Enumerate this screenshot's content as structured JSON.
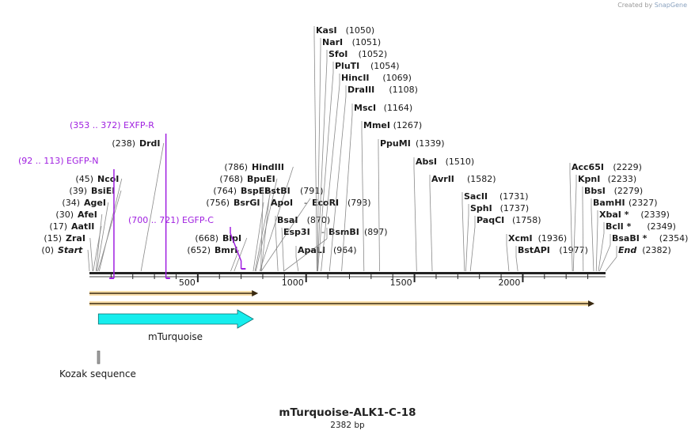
{
  "credit": {
    "prefix": "Created by",
    "brand": "SnapGene"
  },
  "map": {
    "title": "mTurquoise-ALK1-C-18",
    "length_label": "2382 bp",
    "length": 2382,
    "ticks": [
      "500",
      "1000",
      "1500",
      "2000"
    ],
    "sites": [
      {
        "name": "Start",
        "pos": "(0)",
        "bp": 0,
        "side": "left",
        "italic": true
      },
      {
        "name": "ZraI",
        "pos": "(15)",
        "bp": 15,
        "side": "left"
      },
      {
        "name": "AatII",
        "pos": "(17)",
        "bp": 17,
        "side": "left"
      },
      {
        "name": "AfeI",
        "pos": "(30)",
        "bp": 30,
        "side": "left"
      },
      {
        "name": "AgeI",
        "pos": "(34)",
        "bp": 34,
        "side": "left"
      },
      {
        "name": "BsiEI",
        "pos": "(39)",
        "bp": 39,
        "side": "left"
      },
      {
        "name": "NcoI",
        "pos": "(45)",
        "bp": 45,
        "side": "left"
      },
      {
        "name": "DrdI",
        "pos": "(238)",
        "bp": 238,
        "side": "left"
      },
      {
        "name": "BmrI",
        "pos": "(652)",
        "bp": 652,
        "side": "left"
      },
      {
        "name": "BlpI",
        "pos": "(668)",
        "bp": 668,
        "side": "left"
      },
      {
        "name": "BsrGI",
        "pos": "(756)",
        "bp": 756,
        "side": "left"
      },
      {
        "name": "BspEI",
        "pos": "(764)",
        "bp": 764,
        "side": "left"
      },
      {
        "name": "BpuEI",
        "pos": "(768)",
        "bp": 768,
        "side": "left"
      },
      {
        "name": "HindIII",
        "pos": "(786)",
        "bp": 786,
        "side": "left"
      },
      {
        "name": "BstBI",
        "pos": "(791)",
        "bp": 791,
        "side": "right"
      },
      {
        "name": "ApoI",
        "pos": "",
        "bp": 793,
        "side": "plain"
      },
      {
        "name": "EcoRI",
        "pos": "(793)",
        "bp": 793,
        "side": "right"
      },
      {
        "name": "BsaI",
        "pos": "(870)",
        "bp": 870,
        "side": "right"
      },
      {
        "name": "Esp3I",
        "pos": "",
        "bp": 897,
        "side": "plain"
      },
      {
        "name": "BsmBI",
        "pos": "(897)",
        "bp": 897,
        "side": "right"
      },
      {
        "name": "ApaLI",
        "pos": "(964)",
        "bp": 964,
        "side": "right"
      },
      {
        "name": "KasI",
        "pos": "(1050)",
        "bp": 1050,
        "side": "right"
      },
      {
        "name": "NarI",
        "pos": "(1051)",
        "bp": 1051,
        "side": "right"
      },
      {
        "name": "SfoI",
        "pos": "(1052)",
        "bp": 1052,
        "side": "right"
      },
      {
        "name": "PluTI",
        "pos": "(1054)",
        "bp": 1054,
        "side": "right"
      },
      {
        "name": "HincII",
        "pos": "(1069)",
        "bp": 1069,
        "side": "right"
      },
      {
        "name": "DraIII",
        "pos": "(1108)",
        "bp": 1108,
        "side": "right"
      },
      {
        "name": "MscI",
        "pos": "(1164)",
        "bp": 1164,
        "side": "right"
      },
      {
        "name": "MmeI",
        "pos": "(1267)",
        "bp": 1267,
        "side": "right"
      },
      {
        "name": "PpuMI",
        "pos": "(1339)",
        "bp": 1339,
        "side": "right"
      },
      {
        "name": "AbsI",
        "pos": "(1510)",
        "bp": 1510,
        "side": "right"
      },
      {
        "name": "AvrII",
        "pos": "(1582)",
        "bp": 1582,
        "side": "right"
      },
      {
        "name": "SacII",
        "pos": "(1731)",
        "bp": 1731,
        "side": "right"
      },
      {
        "name": "SphI",
        "pos": "(1737)",
        "bp": 1737,
        "side": "right"
      },
      {
        "name": "PaqCI",
        "pos": "(1758)",
        "bp": 1758,
        "side": "right"
      },
      {
        "name": "XcmI",
        "pos": "(1936)",
        "bp": 1936,
        "side": "right"
      },
      {
        "name": "BstAPI",
        "pos": "(1977)",
        "bp": 1977,
        "side": "right"
      },
      {
        "name": "Acc65I",
        "pos": "(2229)",
        "bp": 2229,
        "side": "right"
      },
      {
        "name": "KpnI",
        "pos": "(2233)",
        "bp": 2233,
        "side": "right"
      },
      {
        "name": "BbsI",
        "pos": "(2279)",
        "bp": 2279,
        "side": "right"
      },
      {
        "name": "BamHI",
        "pos": "(2327)",
        "bp": 2327,
        "side": "right"
      },
      {
        "name": "XbaI *",
        "pos": "(2339)",
        "bp": 2339,
        "side": "right"
      },
      {
        "name": "BclI *",
        "pos": "(2349)",
        "bp": 2349,
        "side": "right"
      },
      {
        "name": "BsaBI *",
        "pos": "(2354)",
        "bp": 2354,
        "side": "right"
      },
      {
        "name": "End",
        "pos": "(2382)",
        "bp": 2382,
        "side": "right",
        "italic": true
      }
    ],
    "primers": [
      {
        "range": "(92 .. 113)",
        "name": "EGFP-N",
        "start": 92,
        "end": 113
      },
      {
        "range": "(353 .. 372)",
        "name": "EXFP-R",
        "start": 353,
        "end": 372
      },
      {
        "range": "(700 .. 721)",
        "name": "EGFP-C",
        "start": 700,
        "end": 721
      }
    ],
    "arrows": [
      {
        "start": 0,
        "end": 830
      },
      {
        "start": 0,
        "end": 2382
      }
    ],
    "features": [
      {
        "name": "mTurquoise",
        "start": 45,
        "end": 783,
        "color": "#16eded"
      },
      {
        "name": "Kozak sequence",
        "start": 39,
        "end": 48,
        "color": "#a0a0a0"
      }
    ],
    "colors": {
      "primer": "#a020e0",
      "arrow": "#f5b841",
      "text": "#1a1a1a",
      "line": "#8a8a8a"
    }
  }
}
